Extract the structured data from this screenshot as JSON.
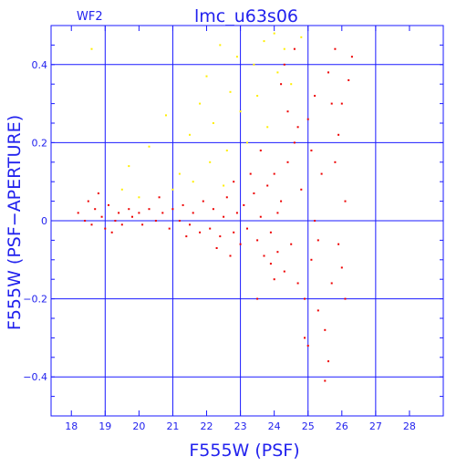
{
  "chart_data": {
    "type": "scatter",
    "title": "lmc_u63s06",
    "corner_label": "WF2",
    "xlabel": "F555W (PSF)",
    "ylabel": "F555W (PSF−APERTURE)",
    "xlim": [
      17.4,
      29.0
    ],
    "ylim": [
      -0.5,
      0.5
    ],
    "grid": true,
    "xticks": [
      18,
      19,
      20,
      21,
      22,
      23,
      24,
      25,
      26,
      27,
      28
    ],
    "yticks": [
      0.4,
      0.2,
      0,
      -0.2,
      -0.4
    ],
    "ytick_labels": [
      "0.4",
      "0.2",
      "0",
      "−0.2",
      "−0.4"
    ],
    "colors": {
      "axis": "#1a1aff",
      "text": "#2222ee",
      "accent": "#ee0000",
      "secondary": "#ffee00"
    },
    "series": [
      {
        "color": "#ee0000",
        "points": [
          [
            18.2,
            0.02
          ],
          [
            18.4,
            0.0
          ],
          [
            18.5,
            0.05
          ],
          [
            18.6,
            -0.01
          ],
          [
            18.7,
            0.03
          ],
          [
            18.9,
            0.01
          ],
          [
            19.0,
            -0.02
          ],
          [
            19.1,
            0.04
          ],
          [
            19.3,
            0.0
          ],
          [
            19.4,
            0.02
          ],
          [
            19.5,
            -0.01
          ],
          [
            19.7,
            0.03
          ],
          [
            19.8,
            0.01
          ],
          [
            20.0,
            0.02
          ],
          [
            20.1,
            -0.01
          ],
          [
            20.3,
            0.03
          ],
          [
            20.5,
            0.0
          ],
          [
            20.7,
            0.02
          ],
          [
            20.9,
            -0.02
          ],
          [
            21.0,
            0.03
          ],
          [
            21.2,
            0.0
          ],
          [
            21.3,
            0.04
          ],
          [
            21.5,
            -0.01
          ],
          [
            21.6,
            0.02
          ],
          [
            21.8,
            -0.03
          ],
          [
            21.9,
            0.05
          ],
          [
            22.1,
            -0.02
          ],
          [
            22.2,
            0.03
          ],
          [
            22.4,
            -0.04
          ],
          [
            22.5,
            0.01
          ],
          [
            22.6,
            0.06
          ],
          [
            22.8,
            -0.03
          ],
          [
            22.9,
            0.02
          ],
          [
            23.0,
            -0.06
          ],
          [
            23.1,
            0.04
          ],
          [
            23.2,
            -0.02
          ],
          [
            23.4,
            0.07
          ],
          [
            23.5,
            -0.05
          ],
          [
            23.6,
            0.01
          ],
          [
            23.7,
            -0.09
          ],
          [
            23.8,
            0.09
          ],
          [
            23.9,
            -0.03
          ],
          [
            24.0,
            0.12
          ],
          [
            24.1,
            -0.08
          ],
          [
            24.2,
            0.05
          ],
          [
            24.3,
            -0.13
          ],
          [
            24.4,
            0.15
          ],
          [
            24.5,
            -0.06
          ],
          [
            24.6,
            0.2
          ],
          [
            24.7,
            -0.16
          ],
          [
            24.8,
            0.08
          ],
          [
            24.9,
            -0.2
          ],
          [
            25.0,
            0.26
          ],
          [
            25.1,
            -0.1
          ],
          [
            25.2,
            0.32
          ],
          [
            25.3,
            -0.23
          ],
          [
            25.4,
            0.12
          ],
          [
            25.5,
            -0.28
          ],
          [
            25.6,
            0.38
          ],
          [
            25.7,
            -0.16
          ],
          [
            25.8,
            0.44
          ],
          [
            25.9,
            -0.06
          ],
          [
            26.0,
            0.3
          ],
          [
            26.1,
            0.05
          ],
          [
            26.2,
            0.36
          ],
          [
            26.3,
            0.42
          ],
          [
            24.2,
            0.35
          ],
          [
            24.6,
            0.44
          ],
          [
            25.0,
            -0.32
          ],
          [
            25.5,
            -0.41
          ],
          [
            24.9,
            -0.3
          ],
          [
            23.5,
            -0.2
          ],
          [
            25.2,
            0.0
          ],
          [
            25.8,
            0.15
          ],
          [
            26.0,
            -0.12
          ],
          [
            24.4,
            0.28
          ],
          [
            25.6,
            -0.36
          ],
          [
            24.0,
            -0.15
          ],
          [
            23.3,
            0.12
          ],
          [
            22.8,
            0.1
          ],
          [
            25.1,
            0.18
          ],
          [
            24.7,
            0.24
          ],
          [
            25.9,
            0.22
          ],
          [
            25.3,
            -0.05
          ],
          [
            24.1,
            0.02
          ],
          [
            23.9,
            -0.11
          ],
          [
            22.3,
            -0.07
          ],
          [
            21.4,
            -0.04
          ],
          [
            20.6,
            0.06
          ],
          [
            19.2,
            -0.03
          ],
          [
            18.8,
            0.07
          ],
          [
            26.1,
            -0.2
          ],
          [
            25.7,
            0.3
          ],
          [
            24.3,
            0.4
          ],
          [
            23.6,
            0.18
          ],
          [
            22.7,
            -0.09
          ]
        ]
      },
      {
        "color": "#ffee00",
        "points": [
          [
            18.6,
            0.44
          ],
          [
            19.7,
            0.14
          ],
          [
            20.3,
            0.19
          ],
          [
            20.8,
            0.27
          ],
          [
            21.2,
            0.12
          ],
          [
            21.5,
            0.22
          ],
          [
            21.8,
            0.3
          ],
          [
            22.0,
            0.37
          ],
          [
            22.2,
            0.25
          ],
          [
            22.4,
            0.45
          ],
          [
            22.6,
            0.18
          ],
          [
            22.7,
            0.33
          ],
          [
            22.9,
            0.42
          ],
          [
            23.0,
            0.28
          ],
          [
            23.2,
            0.2
          ],
          [
            23.4,
            0.4
          ],
          [
            23.5,
            0.32
          ],
          [
            23.7,
            0.46
          ],
          [
            23.8,
            0.24
          ],
          [
            24.0,
            0.48
          ],
          [
            24.1,
            0.38
          ],
          [
            24.3,
            0.44
          ],
          [
            24.5,
            0.35
          ],
          [
            24.8,
            0.47
          ],
          [
            21.0,
            0.08
          ],
          [
            21.6,
            0.1
          ],
          [
            22.1,
            0.15
          ],
          [
            22.5,
            0.09
          ],
          [
            20.0,
            0.06
          ],
          [
            19.5,
            0.08
          ]
        ]
      }
    ]
  }
}
